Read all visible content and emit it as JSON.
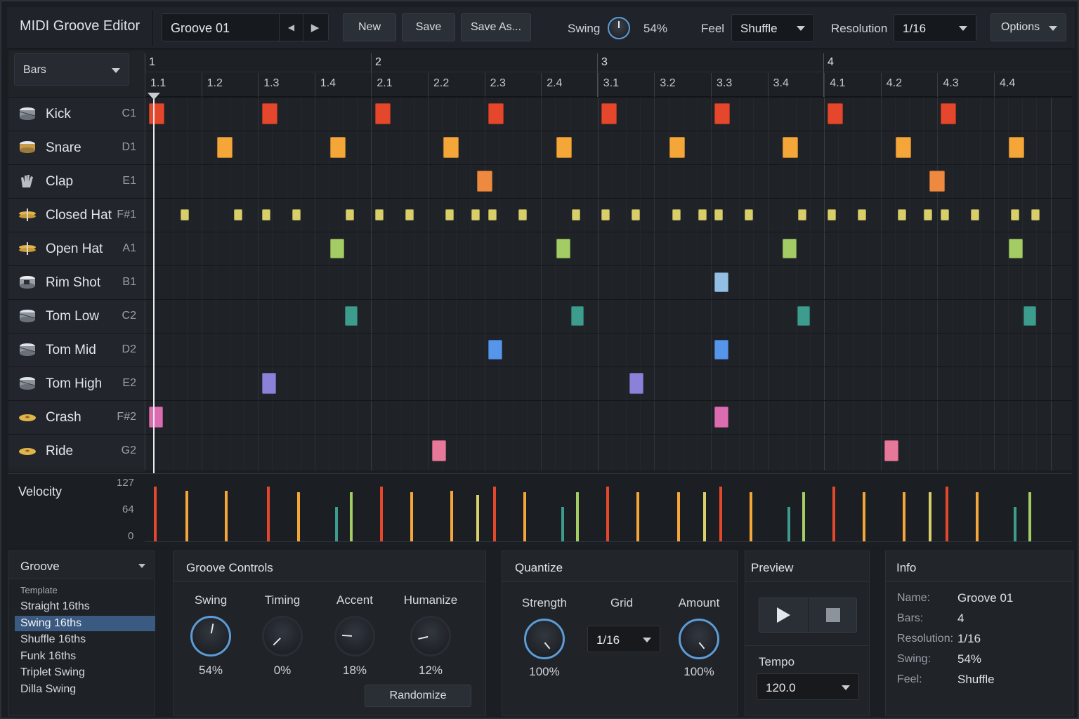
{
  "toolbar": {
    "app_title": "MIDI Groove Editor",
    "groove_name": "Groove 01",
    "new_label": "New",
    "save_label": "Save",
    "save_as_label": "Save As...",
    "swing_label": "Swing",
    "swing_value": "54%",
    "feel_label": "Feel",
    "feel_value": "Shuffle",
    "resolution_label": "Resolution",
    "resolution_value": "1/16",
    "options_label": "Options"
  },
  "view_mode": "Bars",
  "ruler": {
    "bars": [
      "1",
      "2",
      "3",
      "4"
    ],
    "beats": [
      "1.1",
      "1.2",
      "1.3",
      "1.4",
      "2.1",
      "2.2",
      "2.3",
      "2.4",
      "3.1",
      "3.2",
      "3.3",
      "3.4",
      "4.1",
      "4.2",
      "4.3",
      "4.4"
    ]
  },
  "tracks": [
    {
      "name": "Kick",
      "note": "C1",
      "icon": "kick-drum-icon",
      "color": "#e5472c",
      "steps": [
        0,
        1,
        2,
        3,
        4,
        5,
        6,
        7
      ],
      "w": 22,
      "h": 30
    },
    {
      "name": "Snare",
      "note": "D1",
      "icon": "snare-drum-icon",
      "color": "#f5a638",
      "steps": [
        0.6,
        1.6,
        2.6,
        3.6,
        4.6,
        5.6,
        6.6,
        7.6
      ],
      "w": 22,
      "h": 30
    },
    {
      "name": "Clap",
      "note": "E1",
      "icon": "clap-hand-icon",
      "color": "#ee8a3f",
      "steps": [
        2.9,
        6.9
      ],
      "w": 22,
      "h": 30
    },
    {
      "name": "Closed Hat",
      "note": "F#1",
      "icon": "hihat-closed-icon",
      "color": "#d8cf6b",
      "steps": [
        0.28,
        0.75,
        1.0,
        1.27,
        1.74,
        2.0,
        2.27,
        2.62,
        2.85,
        3.0,
        3.27,
        3.74,
        4.0,
        4.27,
        4.63,
        4.86,
        5.0,
        5.27,
        5.74,
        6.0,
        6.27,
        6.62,
        6.85,
        7.0,
        7.27,
        7.62,
        7.8
      ],
      "w": 12,
      "h": 16
    },
    {
      "name": "Open Hat",
      "note": "A1",
      "icon": "hihat-open-icon",
      "color": "#a3cc64",
      "steps": [
        1.6,
        3.6,
        5.6,
        7.6
      ],
      "w": 20,
      "h": 28
    },
    {
      "name": "Rim Shot",
      "note": "B1",
      "icon": "rim-shot-icon",
      "color": "#92bfe3",
      "steps": [
        5.0
      ],
      "w": 20,
      "h": 28
    },
    {
      "name": "Tom Low",
      "note": "C2",
      "icon": "tom-low-icon",
      "color": "#3d9c8e",
      "steps": [
        1.73,
        3.73,
        5.73,
        7.73
      ],
      "w": 18,
      "h": 28
    },
    {
      "name": "Tom Mid",
      "note": "D2",
      "icon": "tom-mid-icon",
      "color": "#5595ea",
      "steps": [
        3.0,
        5.0
      ],
      "w": 20,
      "h": 28
    },
    {
      "name": "Tom High",
      "note": "E2",
      "icon": "tom-high-icon",
      "color": "#8a82d8",
      "steps": [
        1.0,
        4.25
      ],
      "w": 20,
      "h": 30
    },
    {
      "name": "Crash",
      "note": "F#2",
      "icon": "crash-cymbal-icon",
      "color": "#dc6cb0",
      "steps": [
        0,
        5.0
      ],
      "w": 20,
      "h": 30
    },
    {
      "name": "Ride",
      "note": "G2",
      "icon": "ride-cymbal-icon",
      "color": "#e8789a",
      "steps": [
        2.5,
        6.5
      ],
      "w": 20,
      "h": 30
    }
  ],
  "velocity": {
    "label": "Velocity",
    "scale": [
      "127",
      "64",
      "0"
    ],
    "bars": [
      {
        "step": 0,
        "v": 0.95,
        "c": "#e5472c"
      },
      {
        "step": 0.28,
        "v": 0.88,
        "c": "#f5a638"
      },
      {
        "step": 0.63,
        "v": 0.88,
        "c": "#f5a638"
      },
      {
        "step": 1.0,
        "v": 0.95,
        "c": "#e5472c"
      },
      {
        "step": 1.27,
        "v": 0.85,
        "c": "#f5a638"
      },
      {
        "step": 1.6,
        "v": 0.6,
        "c": "#3d9c8e"
      },
      {
        "step": 1.73,
        "v": 0.85,
        "c": "#a3cc64"
      },
      {
        "step": 2.0,
        "v": 0.95,
        "c": "#e5472c"
      },
      {
        "step": 2.27,
        "v": 0.85,
        "c": "#f5a638"
      },
      {
        "step": 2.62,
        "v": 0.88,
        "c": "#f5a638"
      },
      {
        "step": 2.85,
        "v": 0.8,
        "c": "#d8cf6b"
      },
      {
        "step": 3.0,
        "v": 0.95,
        "c": "#e5472c"
      },
      {
        "step": 3.27,
        "v": 0.85,
        "c": "#f5a638"
      },
      {
        "step": 3.6,
        "v": 0.6,
        "c": "#3d9c8e"
      },
      {
        "step": 3.73,
        "v": 0.85,
        "c": "#a3cc64"
      },
      {
        "step": 4.0,
        "v": 0.95,
        "c": "#e5472c"
      },
      {
        "step": 4.27,
        "v": 0.85,
        "c": "#f5a638"
      },
      {
        "step": 4.63,
        "v": 0.85,
        "c": "#f5a638"
      },
      {
        "step": 4.86,
        "v": 0.85,
        "c": "#d8cf6b"
      },
      {
        "step": 5.0,
        "v": 0.95,
        "c": "#e5472c"
      },
      {
        "step": 5.27,
        "v": 0.85,
        "c": "#f5a638"
      },
      {
        "step": 5.6,
        "v": 0.6,
        "c": "#3d9c8e"
      },
      {
        "step": 5.73,
        "v": 0.85,
        "c": "#a3cc64"
      },
      {
        "step": 6.0,
        "v": 0.95,
        "c": "#e5472c"
      },
      {
        "step": 6.27,
        "v": 0.85,
        "c": "#f5a638"
      },
      {
        "step": 6.62,
        "v": 0.85,
        "c": "#f5a638"
      },
      {
        "step": 6.85,
        "v": 0.85,
        "c": "#d8cf6b"
      },
      {
        "step": 7.0,
        "v": 0.95,
        "c": "#e5472c"
      },
      {
        "step": 7.27,
        "v": 0.85,
        "c": "#f5a638"
      },
      {
        "step": 7.6,
        "v": 0.6,
        "c": "#3d9c8e"
      },
      {
        "step": 7.73,
        "v": 0.85,
        "c": "#a3cc64"
      }
    ]
  },
  "groove_panel": {
    "title": "Groove",
    "list_header": "Template",
    "templates": [
      "Straight 16ths",
      "Swing 16ths",
      "Shuffle 16ths",
      "Funk 16ths",
      "Triplet Swing",
      "Dilla Swing"
    ],
    "selected": "Swing 16ths"
  },
  "groove_controls": {
    "title": "Groove Controls",
    "knobs": [
      {
        "label": "Swing",
        "value": "54%",
        "level": 0.54
      },
      {
        "label": "Timing",
        "value": "0%",
        "level": 0.0
      },
      {
        "label": "Accent",
        "value": "18%",
        "level": 0.18
      },
      {
        "label": "Humanize",
        "value": "12%",
        "level": 0.12
      }
    ],
    "randomize_label": "Randomize"
  },
  "quantize": {
    "title": "Quantize",
    "strength_label": "Strength",
    "strength_value": "100%",
    "grid_label": "Grid",
    "grid_value": "1/16",
    "amount_label": "Amount",
    "amount_value": "100%"
  },
  "preview": {
    "title": "Preview",
    "tempo_label": "Tempo",
    "tempo_value": "120.0"
  },
  "info": {
    "title": "Info",
    "rows": [
      {
        "key": "Name:",
        "value": "Groove 01"
      },
      {
        "key": "Bars:",
        "value": "4"
      },
      {
        "key": "Resolution:",
        "value": "1/16"
      },
      {
        "key": "Swing:",
        "value": "54%"
      },
      {
        "key": "Feel:",
        "value": "Shuffle"
      }
    ]
  }
}
